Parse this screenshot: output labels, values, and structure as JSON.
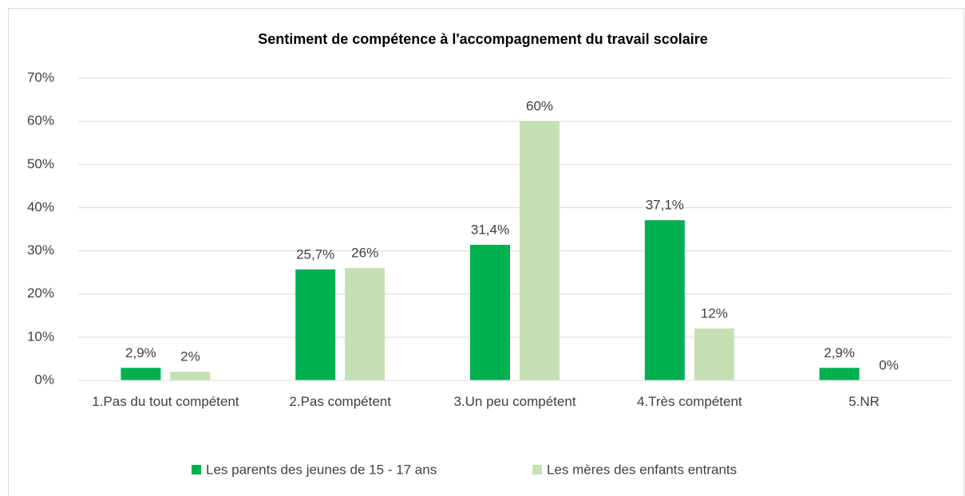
{
  "chart_data": {
    "type": "bar",
    "title": "Sentiment de compétence à l'accompagnement du travail scolaire",
    "categories": [
      "1.Pas du tout compétent",
      "2.Pas compétent",
      "3.Un peu compétent",
      "4.Très compétent",
      "5.NR"
    ],
    "series": [
      {
        "name": "Les parents des jeunes de 15 - 17 ans",
        "color": "#00b050",
        "values": [
          2.9,
          25.7,
          31.4,
          37.1,
          2.9
        ],
        "value_labels": [
          "2,9%",
          "25,7%",
          "31,4%",
          "37,1%",
          "2,9%"
        ]
      },
      {
        "name": "Les mères des enfants entrants",
        "color": "#c5e0b4",
        "values": [
          2,
          26,
          60,
          12,
          0
        ],
        "value_labels": [
          "2%",
          "26%",
          "60%",
          "12%",
          "0%"
        ]
      }
    ],
    "ylim": [
      0,
      70
    ],
    "yticks": [
      {
        "value": 0,
        "label": "0%"
      },
      {
        "value": 10,
        "label": "10%"
      },
      {
        "value": 20,
        "label": "20%"
      },
      {
        "value": 30,
        "label": "30%"
      },
      {
        "value": 40,
        "label": "40%"
      },
      {
        "value": 50,
        "label": "50%"
      },
      {
        "value": 60,
        "label": "60%"
      },
      {
        "value": 70,
        "label": "70%"
      }
    ],
    "grid": true,
    "legend": "bottom"
  }
}
